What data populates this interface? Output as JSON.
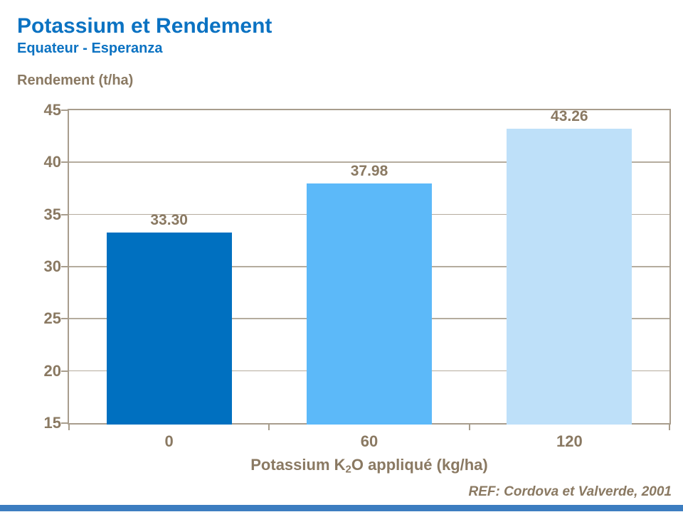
{
  "header": {
    "title": "Potassium et Rendement",
    "subtitle": "Equateur - Esperanza"
  },
  "colors": {
    "title_blue": "#0b72c2",
    "axis_text_brown": "#8a7962",
    "grid_border": "#a89d8d",
    "bar_colors": [
      "#0070c0",
      "#5cb9f9",
      "#bee0f9"
    ],
    "footer_strip_blue": "#3c7dc0"
  },
  "chart_data": {
    "type": "bar",
    "title": "Potassium et Rendement",
    "subtitle": "Equateur - Esperanza",
    "ylabel": "Rendement (t/ha)",
    "xlabel": "Potassium K2O appliqué (kg/ha)",
    "xlabel_parts": {
      "pre": "Potassium K",
      "sub": "2",
      "post": "O appliqué (kg/ha)"
    },
    "categories": [
      "0",
      "60",
      "120"
    ],
    "values": [
      33.3,
      37.98,
      43.26
    ],
    "value_labels": [
      "33.30",
      "37.98",
      "43.26"
    ],
    "ylim": [
      15,
      45
    ],
    "yticks": [
      15,
      20,
      25,
      30,
      35,
      40,
      45
    ],
    "grid": true,
    "legend": "none",
    "bar_fill_order": "dark-to-light"
  },
  "footer": {
    "reference": "REF: Cordova et Valverde, 2001"
  }
}
